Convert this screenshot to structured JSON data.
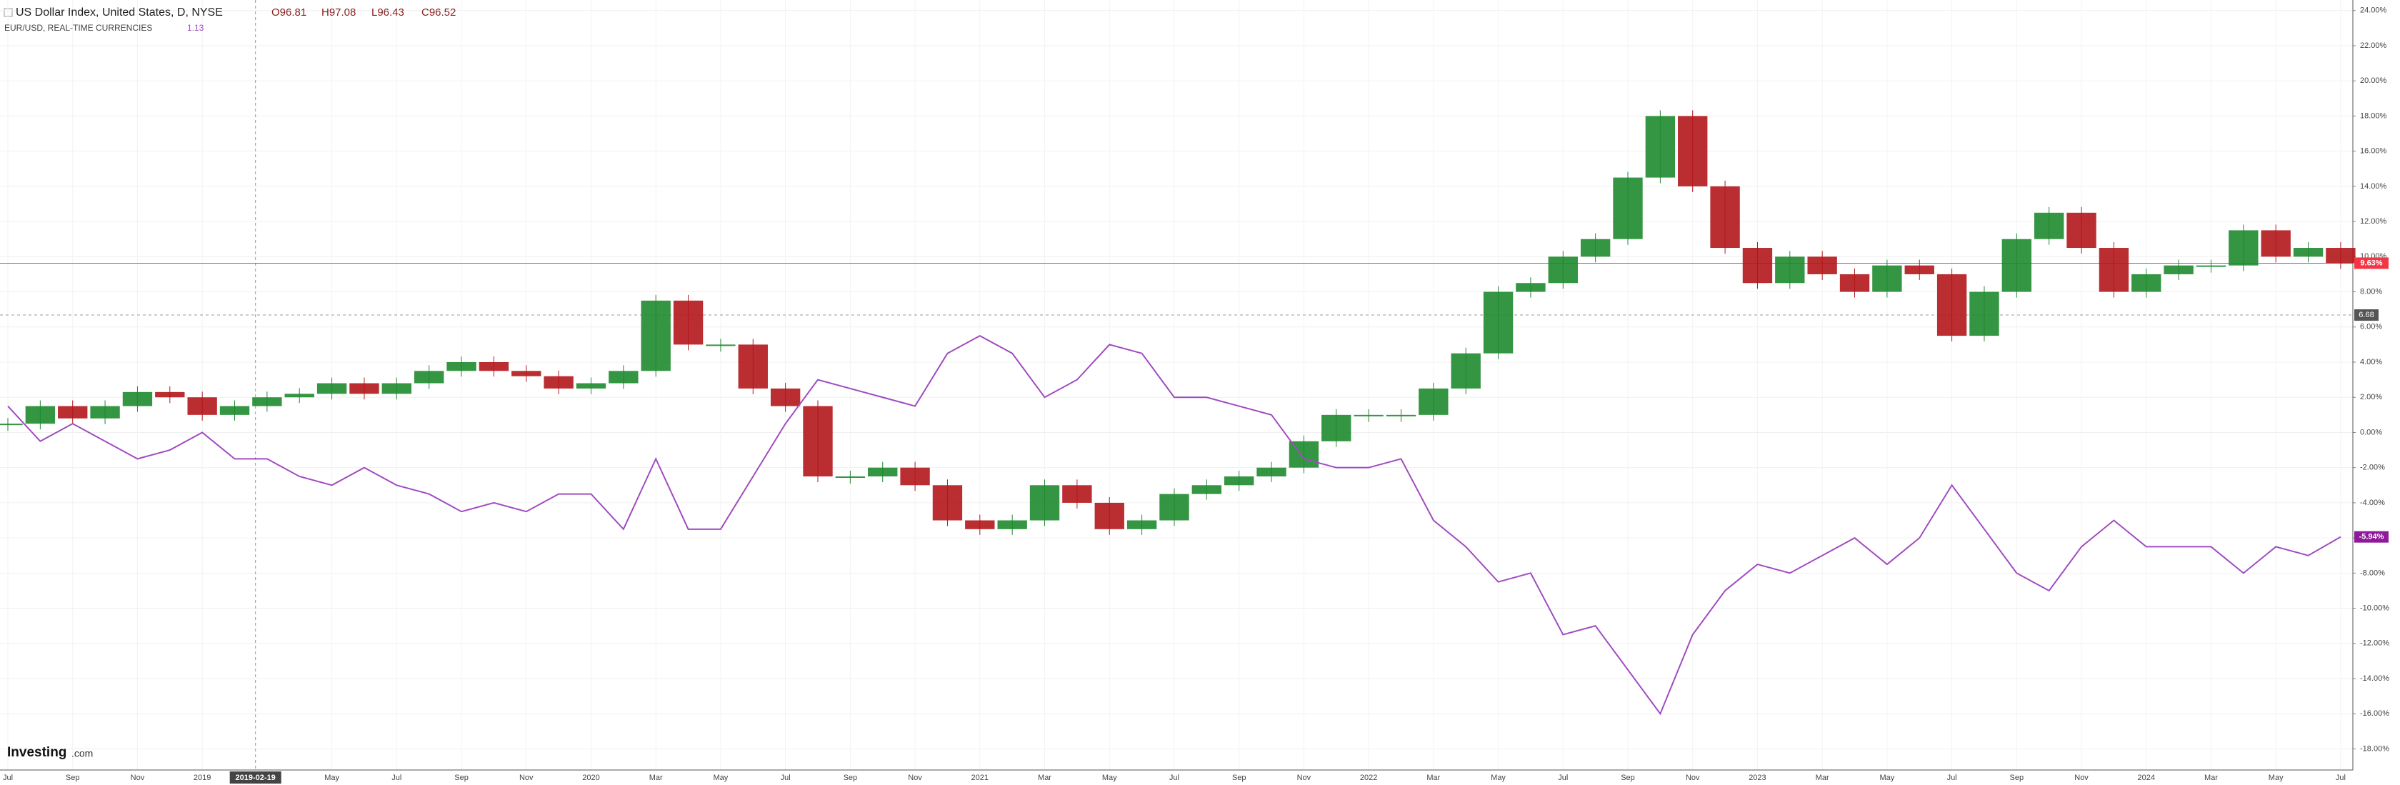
{
  "chart_data": {
    "type": "candle-line",
    "title": "US Dollar Index, United States, D, NYSE",
    "ohlc": [
      "O96.81",
      "H97.08",
      "L96.43",
      "C96.52"
    ],
    "compare_label": "EUR/USD, REAL-TIME CURRENCIES",
    "compare_value": "1.13",
    "logo": [
      "Investing",
      ".com"
    ],
    "categories": [
      "Jul",
      null,
      "Sep",
      null,
      "Nov",
      null,
      "2019",
      null,
      null,
      null,
      "May",
      null,
      "Jul",
      null,
      "Sep",
      null,
      "Nov",
      null,
      "2020",
      null,
      "Mar",
      null,
      "May",
      null,
      "Jul",
      null,
      "Sep",
      null,
      "Nov",
      null,
      "2021",
      null,
      "Mar",
      null,
      "May",
      null,
      "Jul",
      null,
      "Sep",
      null,
      "Nov",
      null,
      "2022",
      null,
      "Mar",
      null,
      "May",
      null,
      "Jul",
      null,
      "Sep",
      null,
      "Nov",
      null,
      "2023",
      null,
      "Mar",
      null,
      "May",
      null,
      "Jul",
      null,
      "Sep",
      null,
      "Nov",
      null,
      "2024",
      null,
      "Mar",
      null,
      "May",
      null,
      "Jul"
    ],
    "series": [
      {
        "name": "US Dollar Index",
        "color": "#1e8a2e",
        "down_color": "#b3161b",
        "values": [
          0.5,
          1.5,
          0.8,
          1.5,
          2.3,
          2.0,
          1.0,
          1.5,
          2.0,
          2.2,
          2.8,
          2.2,
          2.8,
          3.5,
          4.0,
          3.5,
          3.2,
          2.5,
          2.8,
          3.5,
          7.5,
          5.0,
          5.0,
          2.5,
          1.5,
          -2.5,
          -2.5,
          -2.0,
          -3.0,
          -5.0,
          -5.5,
          -5.0,
          -3.0,
          -4.0,
          -5.5,
          -5.0,
          -3.5,
          -3.0,
          -2.5,
          -2.0,
          -0.5,
          1.0,
          1.0,
          1.0,
          2.5,
          4.5,
          8.0,
          8.5,
          10.0,
          11.0,
          14.5,
          18.0,
          14.0,
          10.5,
          8.5,
          10.0,
          9.0,
          8.0,
          9.5,
          9.0,
          5.5,
          8.0,
          11.0,
          12.5,
          10.5,
          8.0,
          9.0,
          9.5,
          9.5,
          11.5,
          10.0,
          10.5,
          9.63
        ]
      },
      {
        "name": "EUR/USD",
        "color": "#a04cc0",
        "values": [
          1.5,
          -0.5,
          0.5,
          -0.5,
          -1.5,
          -1.0,
          0.0,
          -1.5,
          -1.5,
          -2.5,
          -3.0,
          -2.0,
          -3.0,
          -3.5,
          -4.5,
          -4.0,
          -4.5,
          -3.5,
          -3.5,
          -5.5,
          -1.5,
          -5.5,
          -5.5,
          -2.5,
          0.5,
          3.0,
          2.5,
          2.0,
          1.5,
          4.5,
          5.5,
          4.5,
          2.0,
          3.0,
          5.0,
          4.5,
          2.0,
          2.0,
          1.5,
          1.0,
          -1.5,
          -2.0,
          -2.0,
          -1.5,
          -5.0,
          -6.5,
          -8.5,
          -8.0,
          -11.5,
          -11.0,
          -13.5,
          -16.0,
          -11.5,
          -9.0,
          -7.5,
          -8.0,
          -7.0,
          -6.0,
          -7.5,
          -6.0,
          -3.0,
          -5.5,
          -8.0,
          -9.0,
          -6.5,
          -5.0,
          -6.5,
          -6.5,
          -6.5,
          -8.0,
          -6.5,
          -7.0,
          -5.94
        ]
      }
    ],
    "ylim": [
      -19.2,
      24.6
    ],
    "yticks": [
      {
        "value": 24,
        "label": "24.00%"
      },
      {
        "value": 22,
        "label": "22.00%"
      },
      {
        "value": 20,
        "label": "20.00%"
      },
      {
        "value": 18,
        "label": "18.00%"
      },
      {
        "value": 16,
        "label": "16.00%"
      },
      {
        "value": 14,
        "label": "14.00%"
      },
      {
        "value": 12,
        "label": "12.00%"
      },
      {
        "value": 10,
        "label": "10.00%"
      },
      {
        "value": 8,
        "label": "8.00%"
      },
      {
        "value": 6,
        "label": "6.00%"
      },
      {
        "value": 4,
        "label": "4.00%"
      },
      {
        "value": 2,
        "label": "2.00%"
      },
      {
        "value": 0,
        "label": "0.00%"
      },
      {
        "value": -2,
        "label": "-2.00%"
      },
      {
        "value": -4,
        "label": "-4.00%"
      },
      {
        "value": -6,
        "label": "-6.00%"
      },
      {
        "value": -8,
        "label": "-8.00%"
      },
      {
        "value": -10,
        "label": "-10.00%"
      },
      {
        "value": -12,
        "label": "-12.00%"
      },
      {
        "value": -14,
        "label": "-14.00%"
      },
      {
        "value": -16,
        "label": "-16.00%"
      },
      {
        "value": -18,
        "label": "-18.00%"
      }
    ],
    "grid": true,
    "markers": [
      {
        "value": 9.63,
        "label": "9.63%",
        "color": "#f23645",
        "line": "solid"
      },
      {
        "value": -5.94,
        "label": "-5.94%",
        "color": "#8e1a9a"
      }
    ],
    "crosshair": {
      "x": "2019-02-19",
      "y": 6.68,
      "y_label": "6.68"
    }
  }
}
